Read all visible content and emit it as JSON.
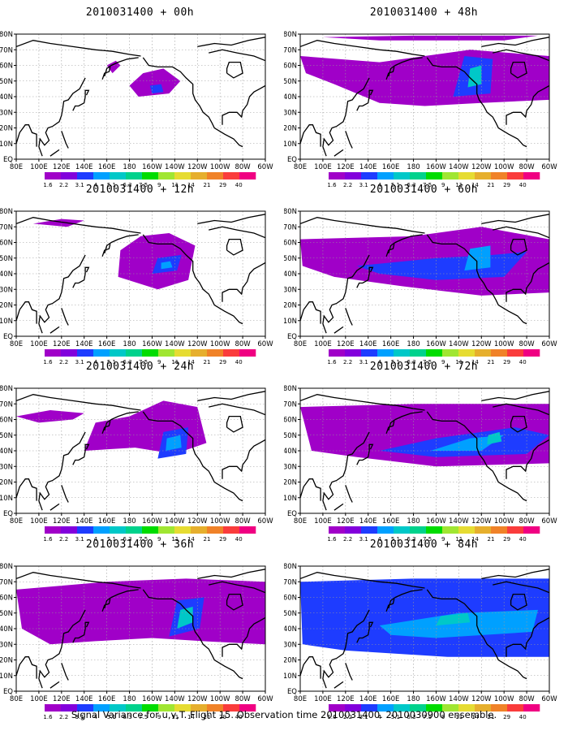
{
  "figure": {
    "caption": "Signal Variance for u,v,T. Flight 15. Observation time 2010031400. 2010030900 ensemble."
  },
  "panels": [
    {
      "title": "2010031400 + 00h",
      "lead_hours": 0
    },
    {
      "title": "2010031400 + 12h",
      "lead_hours": 12
    },
    {
      "title": "2010031400 + 24h",
      "lead_hours": 24
    },
    {
      "title": "2010031400 + 36h",
      "lead_hours": 36
    },
    {
      "title": "2010031400 + 48h",
      "lead_hours": 48
    },
    {
      "title": "2010031400 + 60h",
      "lead_hours": 60
    },
    {
      "title": "2010031400 + 72h",
      "lead_hours": 72
    },
    {
      "title": "2010031400 + 84h",
      "lead_hours": 84
    }
  ],
  "map": {
    "lon_ticks": [
      "80E",
      "100E",
      "120E",
      "140E",
      "160E",
      "180",
      "160W",
      "140W",
      "120W",
      "100W",
      "80W",
      "60W"
    ],
    "lat_ticks": [
      "EQ",
      "10N",
      "20N",
      "30N",
      "40N",
      "50N",
      "60N",
      "70N",
      "80N"
    ]
  },
  "colorbar": {
    "levels": [
      "1.6",
      "2.2",
      "3.1",
      "4",
      "5.1",
      "6.3",
      "7.5",
      "9",
      "11",
      "14",
      "21",
      "29",
      "40"
    ],
    "colors": [
      "#a000c8",
      "#8200dc",
      "#1e3cff",
      "#00a0ff",
      "#00c8c8",
      "#00d28c",
      "#00dc00",
      "#a0e632",
      "#e6dc32",
      "#e6af2d",
      "#f08228",
      "#fa3c3c",
      "#f00082"
    ]
  }
}
